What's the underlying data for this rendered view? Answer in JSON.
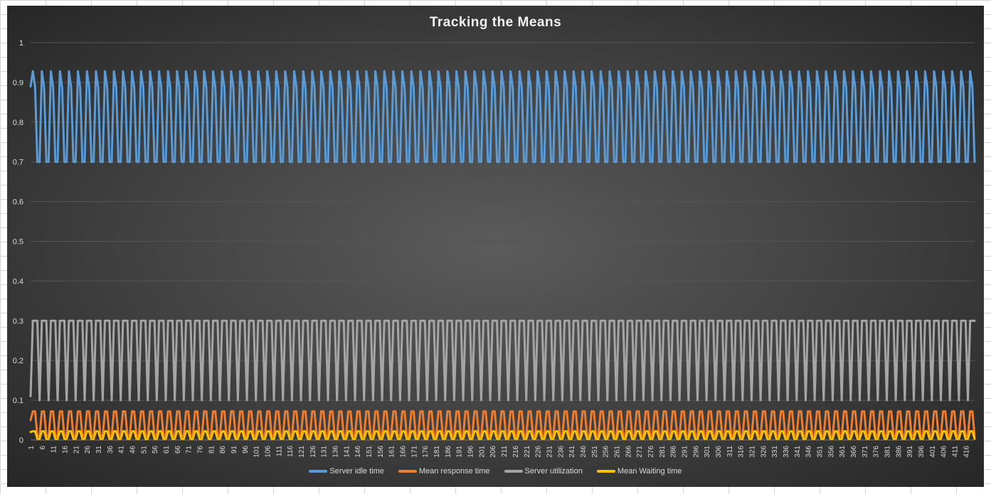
{
  "chart_data": {
    "type": "line",
    "title": "Tracking the Means",
    "xlabel": "",
    "ylabel": "",
    "ylim": [
      0,
      1
    ],
    "yticks": [
      "0",
      "0.1",
      "0.2",
      "0.3",
      "0.4",
      "0.5",
      "0.6",
      "0.7",
      "0.8",
      "0.9",
      "1"
    ],
    "x_range": [
      1,
      420
    ],
    "x_tick_step": 5,
    "grid": "horizontal",
    "legend_position": "bottom",
    "pattern_note": "values repeat with period 4 across x = 1..420",
    "series": [
      {
        "name": "Server idle time",
        "color": "#5b9bd5",
        "first_value": 0.89,
        "pattern": [
          0.928,
          0.888,
          0.7,
          0.7
        ]
      },
      {
        "name": "Mean response time",
        "color": "#ed7d31",
        "first_value": 0.05,
        "pattern": [
          0.072,
          0.072,
          0.01,
          0.01
        ]
      },
      {
        "name": "Server utilization",
        "color": "#a5a5a5",
        "first_value": 0.11,
        "pattern": [
          0.3,
          0.3,
          0.3,
          0.1
        ]
      },
      {
        "name": "Mean Waiting time",
        "color": "#ffc000",
        "first_value": 0.02,
        "pattern": [
          0.022,
          0.022,
          0.003,
          0.003
        ]
      }
    ]
  }
}
